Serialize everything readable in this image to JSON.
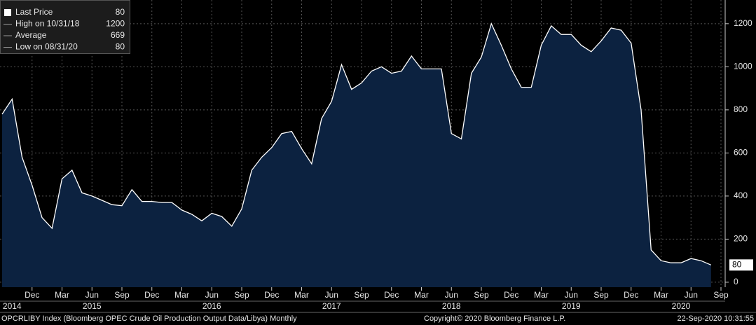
{
  "chart_data": {
    "type": "area",
    "series": [
      {
        "name": "Last Price",
        "color": "#ffffff",
        "fill": "#0c2240",
        "values": [
          780,
          850,
          580,
          450,
          300,
          250,
          480,
          520,
          415,
          400,
          380,
          360,
          355,
          430,
          375,
          375,
          370,
          370,
          335,
          315,
          285,
          320,
          305,
          260,
          340,
          520,
          580,
          625,
          690,
          700,
          620,
          550,
          760,
          840,
          1010,
          895,
          925,
          980,
          1000,
          970,
          980,
          1050,
          990,
          990,
          990,
          690,
          665,
          970,
          1045,
          1200,
          1100,
          990,
          905,
          905,
          1100,
          1190,
          1150,
          1150,
          1100,
          1070,
          1120,
          1180,
          1170,
          1110,
          800,
          150,
          100,
          90,
          90,
          110,
          100,
          80
        ]
      }
    ],
    "x": [
      "2014-09",
      "2014-10",
      "2014-11",
      "2014-12",
      "2015-01",
      "2015-02",
      "2015-03",
      "2015-04",
      "2015-05",
      "2015-06",
      "2015-07",
      "2015-08",
      "2015-09",
      "2015-10",
      "2015-11",
      "2015-12",
      "2016-01",
      "2016-02",
      "2016-03",
      "2016-04",
      "2016-05",
      "2016-06",
      "2016-07",
      "2016-08",
      "2016-09",
      "2016-10",
      "2016-11",
      "2016-12",
      "2017-01",
      "2017-02",
      "2017-03",
      "2017-04",
      "2017-05",
      "2017-06",
      "2017-07",
      "2017-08",
      "2017-09",
      "2017-10",
      "2017-11",
      "2017-12",
      "2018-01",
      "2018-02",
      "2018-03",
      "2018-04",
      "2018-05",
      "2018-06",
      "2018-07",
      "2018-08",
      "2018-09",
      "2018-10",
      "2018-11",
      "2018-12",
      "2019-01",
      "2019-02",
      "2019-03",
      "2019-04",
      "2019-05",
      "2019-06",
      "2019-07",
      "2019-08",
      "2019-09",
      "2019-10",
      "2019-11",
      "2019-12",
      "2020-01",
      "2020-02",
      "2020-03",
      "2020-04",
      "2020-05",
      "2020-06",
      "2020-07",
      "2020-08"
    ],
    "xticks": [
      {
        "value": "2014-12",
        "label": "Dec"
      },
      {
        "value": "2015-03",
        "label": "Mar"
      },
      {
        "value": "2015-06",
        "label": "Jun"
      },
      {
        "value": "2015-09",
        "label": "Sep"
      },
      {
        "value": "2015-12",
        "label": "Dec"
      },
      {
        "value": "2016-03",
        "label": "Mar"
      },
      {
        "value": "2016-06",
        "label": "Jun"
      },
      {
        "value": "2016-09",
        "label": "Sep"
      },
      {
        "value": "2016-12",
        "label": "Dec"
      },
      {
        "value": "2017-03",
        "label": "Mar"
      },
      {
        "value": "2017-06",
        "label": "Jun"
      },
      {
        "value": "2017-09",
        "label": "Sep"
      },
      {
        "value": "2017-12",
        "label": "Dec"
      },
      {
        "value": "2018-03",
        "label": "Mar"
      },
      {
        "value": "2018-06",
        "label": "Jun"
      },
      {
        "value": "2018-09",
        "label": "Sep"
      },
      {
        "value": "2018-12",
        "label": "Dec"
      },
      {
        "value": "2019-03",
        "label": "Mar"
      },
      {
        "value": "2019-06",
        "label": "Jun"
      },
      {
        "value": "2019-09",
        "label": "Sep"
      },
      {
        "value": "2019-12",
        "label": "Dec"
      },
      {
        "value": "2020-03",
        "label": "Mar"
      },
      {
        "value": "2020-06",
        "label": "Jun"
      },
      {
        "value": "2020-09",
        "label": "Sep"
      }
    ],
    "year_labels": [
      {
        "value": "2014-10",
        "label": "2014"
      },
      {
        "value": "2015-06",
        "label": "2015"
      },
      {
        "value": "2016-06",
        "label": "2016"
      },
      {
        "value": "2017-06",
        "label": "2017"
      },
      {
        "value": "2018-06",
        "label": "2018"
      },
      {
        "value": "2019-06",
        "label": "2019"
      },
      {
        "value": "2020-05",
        "label": "2020"
      }
    ],
    "ylim": [
      -23,
      1310
    ],
    "yticks": [
      0,
      200,
      400,
      600,
      800,
      1000,
      1200
    ],
    "grid": true,
    "legend_stats": [
      {
        "label": "Last Price",
        "value": 80
      },
      {
        "label": "High on 10/31/18",
        "value": 1200
      },
      {
        "label": "Average",
        "value": 669
      },
      {
        "label": "Low on 08/31/20",
        "value": 80
      }
    ],
    "footer": {
      "source": "OPCRLIBY Index (Bloomberg OPEC Crude Oil Production Output Data/Libya)  Monthly",
      "copyright": "Copyright© 2020 Bloomberg Finance L.P.",
      "timestamp": "22-Sep-2020 10:31:55"
    }
  }
}
